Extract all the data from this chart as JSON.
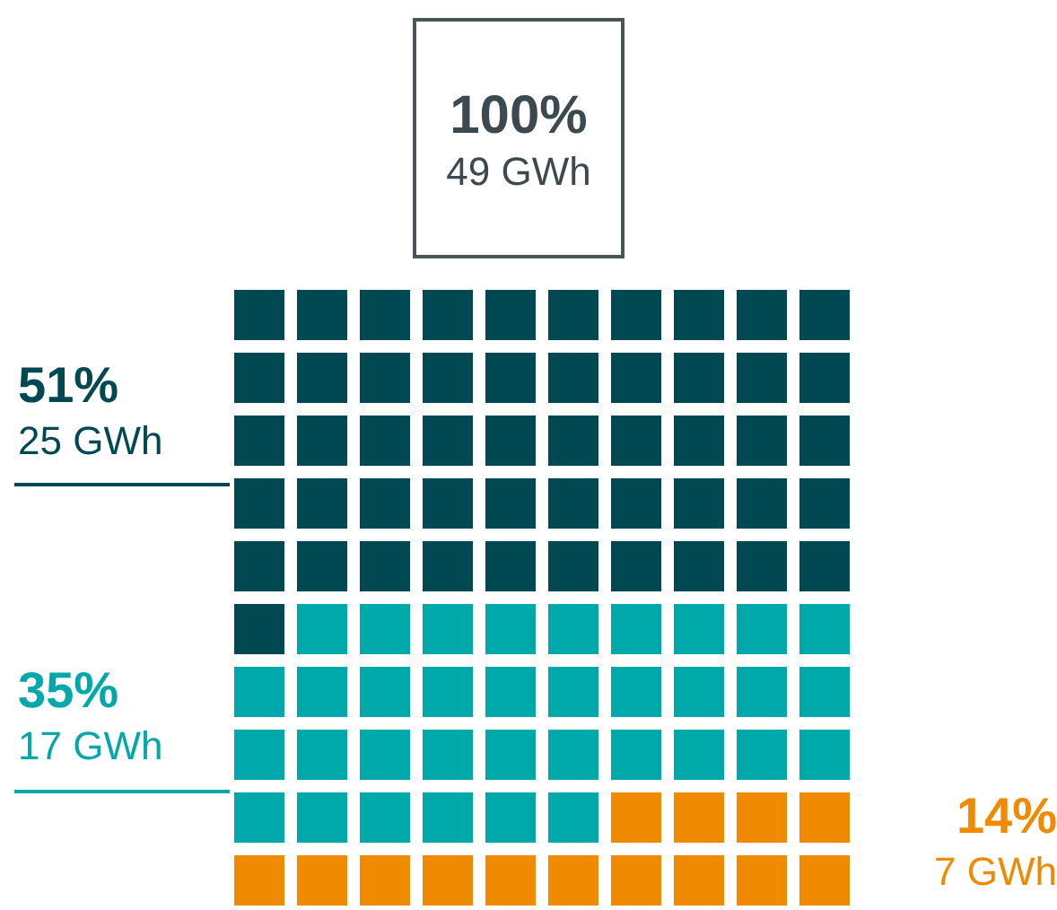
{
  "chart_data": {
    "type": "other",
    "categories": [
      null,
      null,
      null
    ],
    "values": [
      51,
      35,
      14
    ],
    "colors": [
      "#004852",
      "#00a9a9",
      "#f08a00"
    ],
    "value_labels": [
      "51%",
      "35%",
      "14%"
    ],
    "annotations": [
      "100%",
      "49 GWh",
      "25 GWh",
      "17 GWh",
      "7 GWh"
    ]
  }
}
